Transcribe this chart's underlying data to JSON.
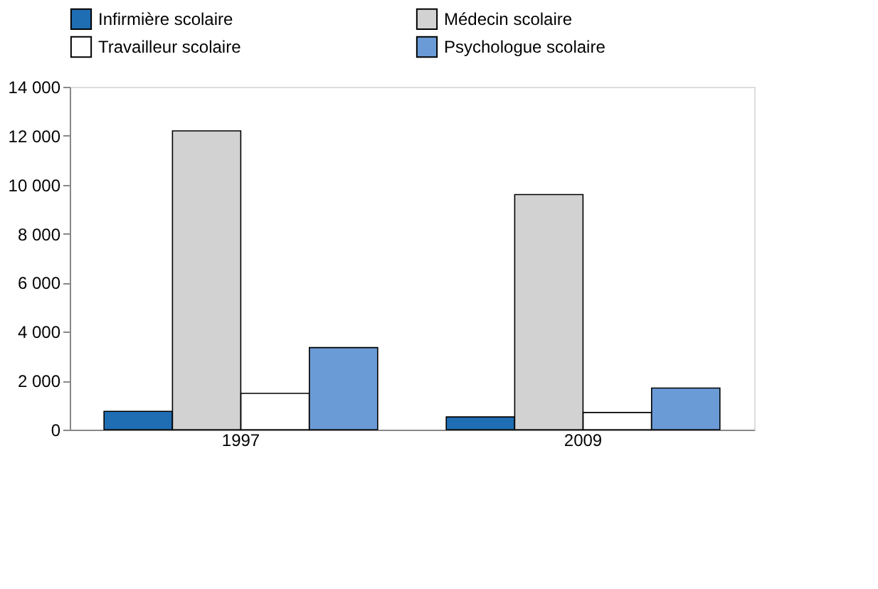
{
  "chart_data": {
    "type": "bar",
    "categories": [
      "1997",
      "2009"
    ],
    "series": [
      {
        "name": "Infirmière scolaire",
        "color": "#1f6db3",
        "values": [
          750,
          520
        ]
      },
      {
        "name": "Médecin scolaire",
        "color": "#d2d2d2",
        "values": [
          12200,
          9600
        ]
      },
      {
        "name": "Travailleur scolaire",
        "color": "#ffffff",
        "values": [
          1480,
          700
        ]
      },
      {
        "name": "Psychologue scolaire",
        "color": "#6b9bd6",
        "values": [
          3350,
          1700
        ]
      }
    ],
    "ylim": [
      0,
      14000
    ],
    "yticks": [
      {
        "value": 0,
        "label": "0"
      },
      {
        "value": 2000,
        "label": "2 000"
      },
      {
        "value": 4000,
        "label": "4 000"
      },
      {
        "value": 6000,
        "label": "6 000"
      },
      {
        "value": 8000,
        "label": "8 000"
      },
      {
        "value": 10000,
        "label": "10 000"
      },
      {
        "value": 12000,
        "label": "12 000"
      },
      {
        "value": 14000,
        "label": "14 000"
      }
    ],
    "grid": false,
    "legend": "top"
  }
}
